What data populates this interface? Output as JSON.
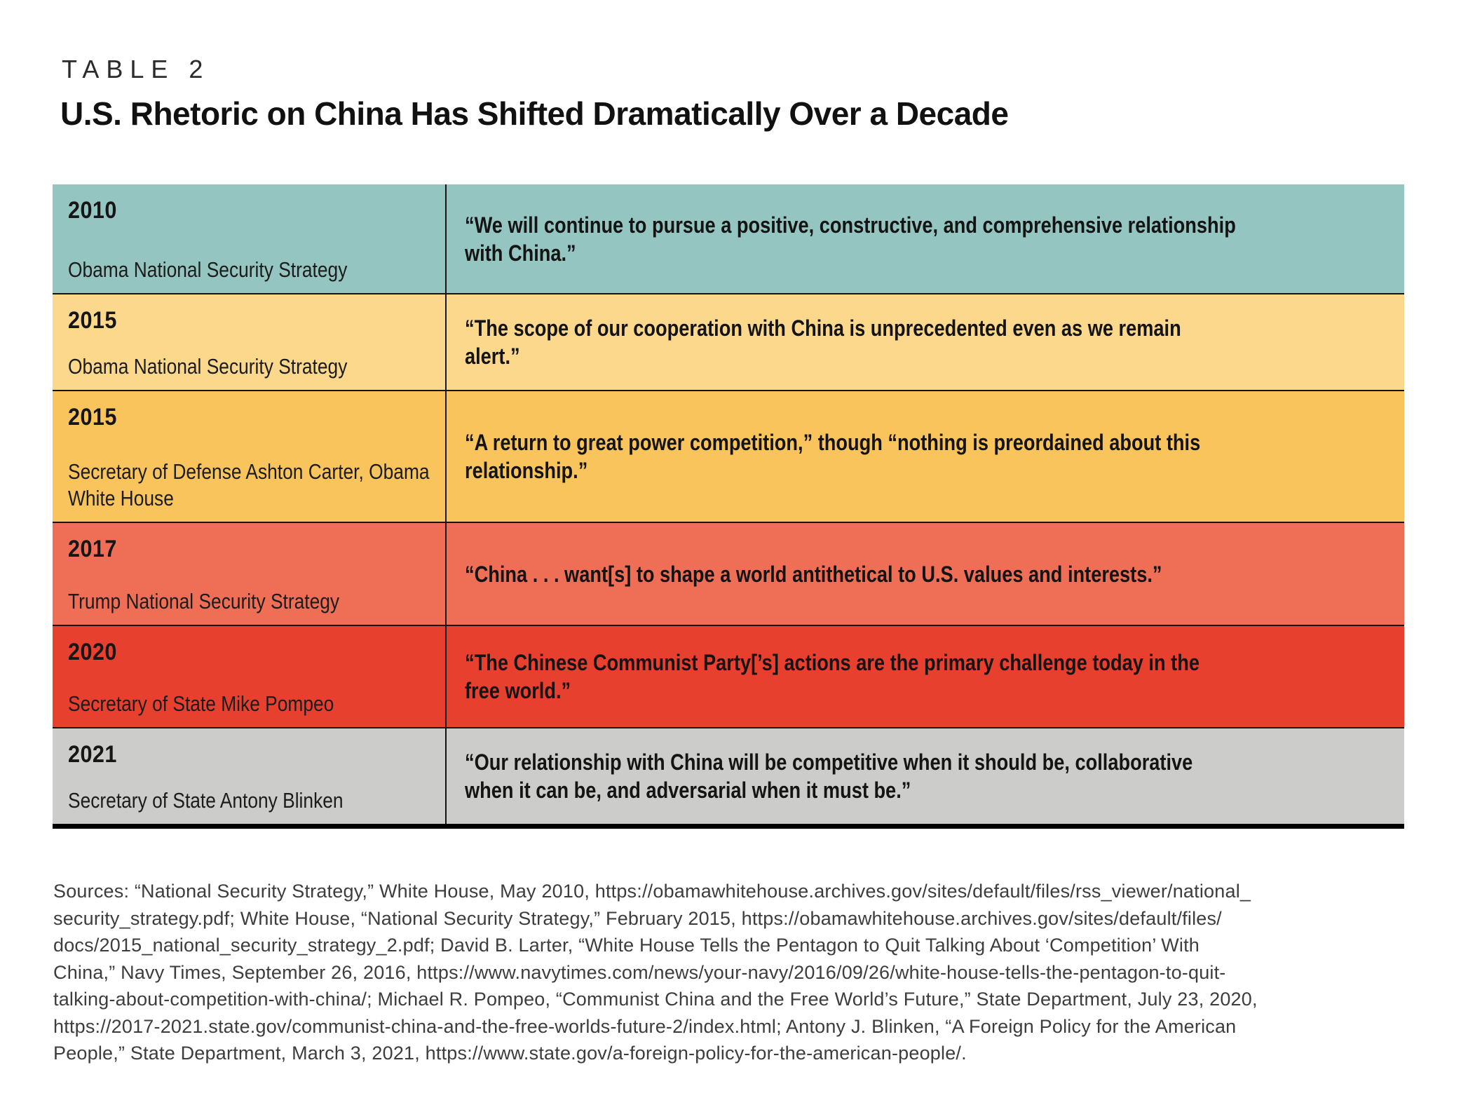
{
  "header": {
    "kicker": "TABLE 2",
    "title": "U.S. Rhetoric on China Has Shifted Dramatically Over a Decade"
  },
  "table": {
    "rows": [
      {
        "year": "2010",
        "source": "Obama National Security Strategy",
        "quote": "“We will continue to pursue a positive, constructive, and comprehensive relationship with China.”",
        "color": "#95c5c0"
      },
      {
        "year": "2015",
        "source": "Obama National Security Strategy",
        "quote": "“The scope of our cooperation with China is unprecedented even as we remain alert.”",
        "color": "#fbd88c"
      },
      {
        "year": "2015",
        "source": "Secretary of Defense Ashton Carter, Obama White House",
        "quote": "“A return to great power competition,” though “nothing is preordained about this relationship.”",
        "color": "#f9c45c"
      },
      {
        "year": "2017",
        "source": "Trump National Security Strategy",
        "quote": "“China . . . want[s] to shape a world antithetical to U.S. values and interests.”",
        "color": "#ee6f56"
      },
      {
        "year": "2020",
        "source": "Secretary of State Mike Pompeo",
        "quote": "“The Chinese Communist Party[’s] actions are the primary challenge today in the free world.”",
        "color": "#e8402f"
      },
      {
        "year": "2021",
        "source": "Secretary of State Antony Blinken",
        "quote": "“Our relationship with China will be competitive when it should be, collaborative when it can be, and adversarial when it must be.”",
        "color": "#cccccb"
      }
    ]
  },
  "sources": {
    "lines": [
      "Sources: “National Security Strategy,” White House, May 2010, https://obamawhitehouse.archives.gov/sites/default/files/rss_viewer/national_",
      "security_strategy.pdf; White House, “National Security Strategy,” February 2015, https://obamawhitehouse.archives.gov/sites/default/files/",
      "docs/2015_national_security_strategy_2.pdf; David B. Larter, “White House Tells the Pentagon to Quit Talking About ‘Competition’ With",
      "China,” Navy Times, September 26, 2016, https://www.navytimes.com/news/your-navy/2016/09/26/white-house-tells-the-pentagon-to-quit-",
      "talking-about-competition-with-china/; Michael R. Pompeo, “Communist China and the Free World’s Future,” State Department, July 23, 2020,",
      "https://2017-2021.state.gov/communist-china-and-the-free-worlds-future-2/index.html; Antony J. Blinken, “A Foreign Policy for the American",
      "People,” State Department, March 3, 2021, https://www.state.gov/a-foreign-policy-for-the-american-people/."
    ]
  }
}
